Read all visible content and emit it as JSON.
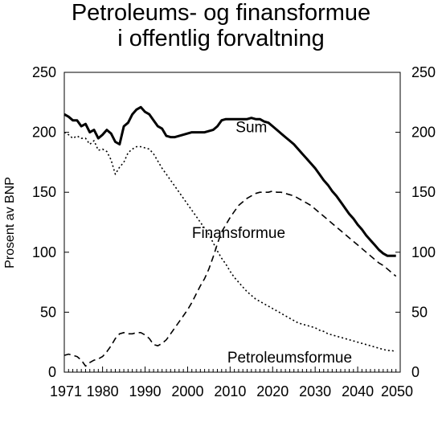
{
  "chart_data": {
    "type": "line",
    "title_lines": [
      "Petroleums- og finansformue",
      "i offentlig forvaltning"
    ],
    "ylabel": "Prosent av BNP",
    "xlabel": "",
    "xlim": [
      1971,
      2050
    ],
    "ylim": [
      0,
      250
    ],
    "yticks": [
      0,
      50,
      100,
      150,
      200,
      250
    ],
    "xtick_labels": [
      "1971",
      "1980",
      "1990",
      "2000",
      "2010",
      "2020",
      "2030",
      "2040",
      "2050"
    ],
    "xticks": [
      1971,
      1980,
      1990,
      2000,
      2010,
      2020,
      2030,
      2040,
      2050
    ],
    "grid": false,
    "legend": "inline labels",
    "series": [
      {
        "name": "Sum",
        "style": "solid-thick",
        "label_at": [
          2015,
          200
        ],
        "points": [
          [
            1971,
            215
          ],
          [
            1972,
            213
          ],
          [
            1973,
            210
          ],
          [
            1974,
            210
          ],
          [
            1975,
            205
          ],
          [
            1976,
            207
          ],
          [
            1977,
            200
          ],
          [
            1978,
            202
          ],
          [
            1979,
            195
          ],
          [
            1980,
            198
          ],
          [
            1981,
            202
          ],
          [
            1982,
            199
          ],
          [
            1983,
            192
          ],
          [
            1984,
            190
          ],
          [
            1985,
            205
          ],
          [
            1986,
            208
          ],
          [
            1987,
            215
          ],
          [
            1988,
            219
          ],
          [
            1989,
            221
          ],
          [
            1990,
            217
          ],
          [
            1991,
            215
          ],
          [
            1992,
            210
          ],
          [
            1993,
            205
          ],
          [
            1994,
            203
          ],
          [
            1995,
            197
          ],
          [
            1996,
            196
          ],
          [
            1997,
            196
          ],
          [
            1998,
            197
          ],
          [
            1999,
            198
          ],
          [
            2000,
            199
          ],
          [
            2001,
            200
          ],
          [
            2002,
            200
          ],
          [
            2003,
            200
          ],
          [
            2004,
            200
          ],
          [
            2005,
            201
          ],
          [
            2006,
            202
          ],
          [
            2007,
            205
          ],
          [
            2008,
            210
          ],
          [
            2009,
            211
          ],
          [
            2010,
            211
          ],
          [
            2011,
            211
          ],
          [
            2012,
            211
          ],
          [
            2013,
            211
          ],
          [
            2014,
            211
          ],
          [
            2015,
            212
          ],
          [
            2016,
            211
          ],
          [
            2017,
            211
          ],
          [
            2018,
            209
          ],
          [
            2019,
            208
          ],
          [
            2020,
            205
          ],
          [
            2021,
            202
          ],
          [
            2022,
            199
          ],
          [
            2023,
            196
          ],
          [
            2024,
            193
          ],
          [
            2025,
            190
          ],
          [
            2026,
            186
          ],
          [
            2027,
            182
          ],
          [
            2028,
            178
          ],
          [
            2029,
            174
          ],
          [
            2030,
            170
          ],
          [
            2031,
            165
          ],
          [
            2032,
            160
          ],
          [
            2033,
            156
          ],
          [
            2034,
            151
          ],
          [
            2035,
            147
          ],
          [
            2036,
            142
          ],
          [
            2037,
            137
          ],
          [
            2038,
            132
          ],
          [
            2039,
            128
          ],
          [
            2040,
            123
          ],
          [
            2041,
            119
          ],
          [
            2042,
            114
          ],
          [
            2043,
            110
          ],
          [
            2044,
            106
          ],
          [
            2045,
            102
          ],
          [
            2046,
            99
          ],
          [
            2047,
            97
          ],
          [
            2048,
            97
          ],
          [
            2049,
            97
          ]
        ]
      },
      {
        "name": "Finansformue",
        "style": "dashed",
        "label_at": [
          2012,
          112
        ],
        "points": [
          [
            1971,
            14
          ],
          [
            1972,
            15
          ],
          [
            1973,
            14
          ],
          [
            1974,
            13
          ],
          [
            1975,
            10
          ],
          [
            1976,
            5
          ],
          [
            1977,
            8
          ],
          [
            1978,
            10
          ],
          [
            1979,
            11
          ],
          [
            1980,
            13
          ],
          [
            1981,
            17
          ],
          [
            1982,
            22
          ],
          [
            1983,
            28
          ],
          [
            1984,
            32
          ],
          [
            1985,
            33
          ],
          [
            1986,
            32
          ],
          [
            1987,
            32
          ],
          [
            1988,
            33
          ],
          [
            1989,
            33
          ],
          [
            1990,
            31
          ],
          [
            1991,
            28
          ],
          [
            1992,
            23
          ],
          [
            1993,
            22
          ],
          [
            1994,
            24
          ],
          [
            1995,
            27
          ],
          [
            1996,
            32
          ],
          [
            1997,
            37
          ],
          [
            1998,
            42
          ],
          [
            1999,
            47
          ],
          [
            2000,
            52
          ],
          [
            2001,
            58
          ],
          [
            2002,
            65
          ],
          [
            2003,
            72
          ],
          [
            2004,
            78
          ],
          [
            2005,
            86
          ],
          [
            2006,
            96
          ],
          [
            2007,
            107
          ],
          [
            2008,
            117
          ],
          [
            2009,
            123
          ],
          [
            2010,
            129
          ],
          [
            2011,
            134
          ],
          [
            2012,
            139
          ],
          [
            2013,
            142
          ],
          [
            2014,
            145
          ],
          [
            2015,
            147
          ],
          [
            2016,
            149
          ],
          [
            2017,
            150
          ],
          [
            2018,
            150
          ],
          [
            2019,
            150
          ],
          [
            2020,
            151
          ],
          [
            2021,
            150
          ],
          [
            2022,
            150
          ],
          [
            2023,
            149
          ],
          [
            2024,
            148
          ],
          [
            2025,
            147
          ],
          [
            2026,
            145
          ],
          [
            2027,
            143
          ],
          [
            2028,
            141
          ],
          [
            2029,
            139
          ],
          [
            2030,
            136
          ],
          [
            2031,
            133
          ],
          [
            2032,
            130
          ],
          [
            2033,
            127
          ],
          [
            2034,
            124
          ],
          [
            2035,
            121
          ],
          [
            2036,
            118
          ],
          [
            2037,
            115
          ],
          [
            2038,
            112
          ],
          [
            2039,
            109
          ],
          [
            2040,
            106
          ],
          [
            2041,
            103
          ],
          [
            2042,
            100
          ],
          [
            2043,
            97
          ],
          [
            2044,
            94
          ],
          [
            2045,
            91
          ],
          [
            2046,
            89
          ],
          [
            2047,
            86
          ],
          [
            2048,
            83
          ],
          [
            2049,
            80
          ]
        ]
      },
      {
        "name": "Petroleumsformue",
        "style": "dotted",
        "label_at": [
          2024,
          8
        ],
        "points": [
          [
            1971,
            200
          ],
          [
            1972,
            198
          ],
          [
            1973,
            195
          ],
          [
            1974,
            197
          ],
          [
            1975,
            195
          ],
          [
            1976,
            195
          ],
          [
            1977,
            190
          ],
          [
            1978,
            193
          ],
          [
            1979,
            185
          ],
          [
            1980,
            186
          ],
          [
            1981,
            184
          ],
          [
            1982,
            177
          ],
          [
            1983,
            165
          ],
          [
            1984,
            171
          ],
          [
            1985,
            175
          ],
          [
            1986,
            183
          ],
          [
            1987,
            186
          ],
          [
            1988,
            188
          ],
          [
            1989,
            188
          ],
          [
            1990,
            187
          ],
          [
            1991,
            186
          ],
          [
            1992,
            182
          ],
          [
            1993,
            176
          ],
          [
            1994,
            170
          ],
          [
            1995,
            165
          ],
          [
            1996,
            160
          ],
          [
            1997,
            155
          ],
          [
            1998,
            150
          ],
          [
            1999,
            145
          ],
          [
            2000,
            140
          ],
          [
            2001,
            135
          ],
          [
            2002,
            130
          ],
          [
            2003,
            125
          ],
          [
            2004,
            120
          ],
          [
            2005,
            115
          ],
          [
            2006,
            108
          ],
          [
            2007,
            101
          ],
          [
            2008,
            95
          ],
          [
            2009,
            90
          ],
          [
            2010,
            84
          ],
          [
            2011,
            79
          ],
          [
            2012,
            75
          ],
          [
            2013,
            71
          ],
          [
            2014,
            67
          ],
          [
            2015,
            64
          ],
          [
            2016,
            61
          ],
          [
            2017,
            59
          ],
          [
            2018,
            57
          ],
          [
            2019,
            55
          ],
          [
            2020,
            53
          ],
          [
            2021,
            51
          ],
          [
            2022,
            49
          ],
          [
            2023,
            47
          ],
          [
            2024,
            45
          ],
          [
            2025,
            43
          ],
          [
            2026,
            41
          ],
          [
            2027,
            40
          ],
          [
            2028,
            39
          ],
          [
            2029,
            38
          ],
          [
            2030,
            37
          ],
          [
            2031,
            35
          ],
          [
            2032,
            34
          ],
          [
            2033,
            32
          ],
          [
            2034,
            31
          ],
          [
            2035,
            30
          ],
          [
            2036,
            29
          ],
          [
            2037,
            28
          ],
          [
            2038,
            27
          ],
          [
            2039,
            26
          ],
          [
            2040,
            25
          ],
          [
            2041,
            24
          ],
          [
            2042,
            23
          ],
          [
            2043,
            22
          ],
          [
            2044,
            21
          ],
          [
            2045,
            20
          ],
          [
            2046,
            19
          ],
          [
            2047,
            18
          ],
          [
            2048,
            18
          ],
          [
            2049,
            17
          ]
        ]
      }
    ]
  }
}
